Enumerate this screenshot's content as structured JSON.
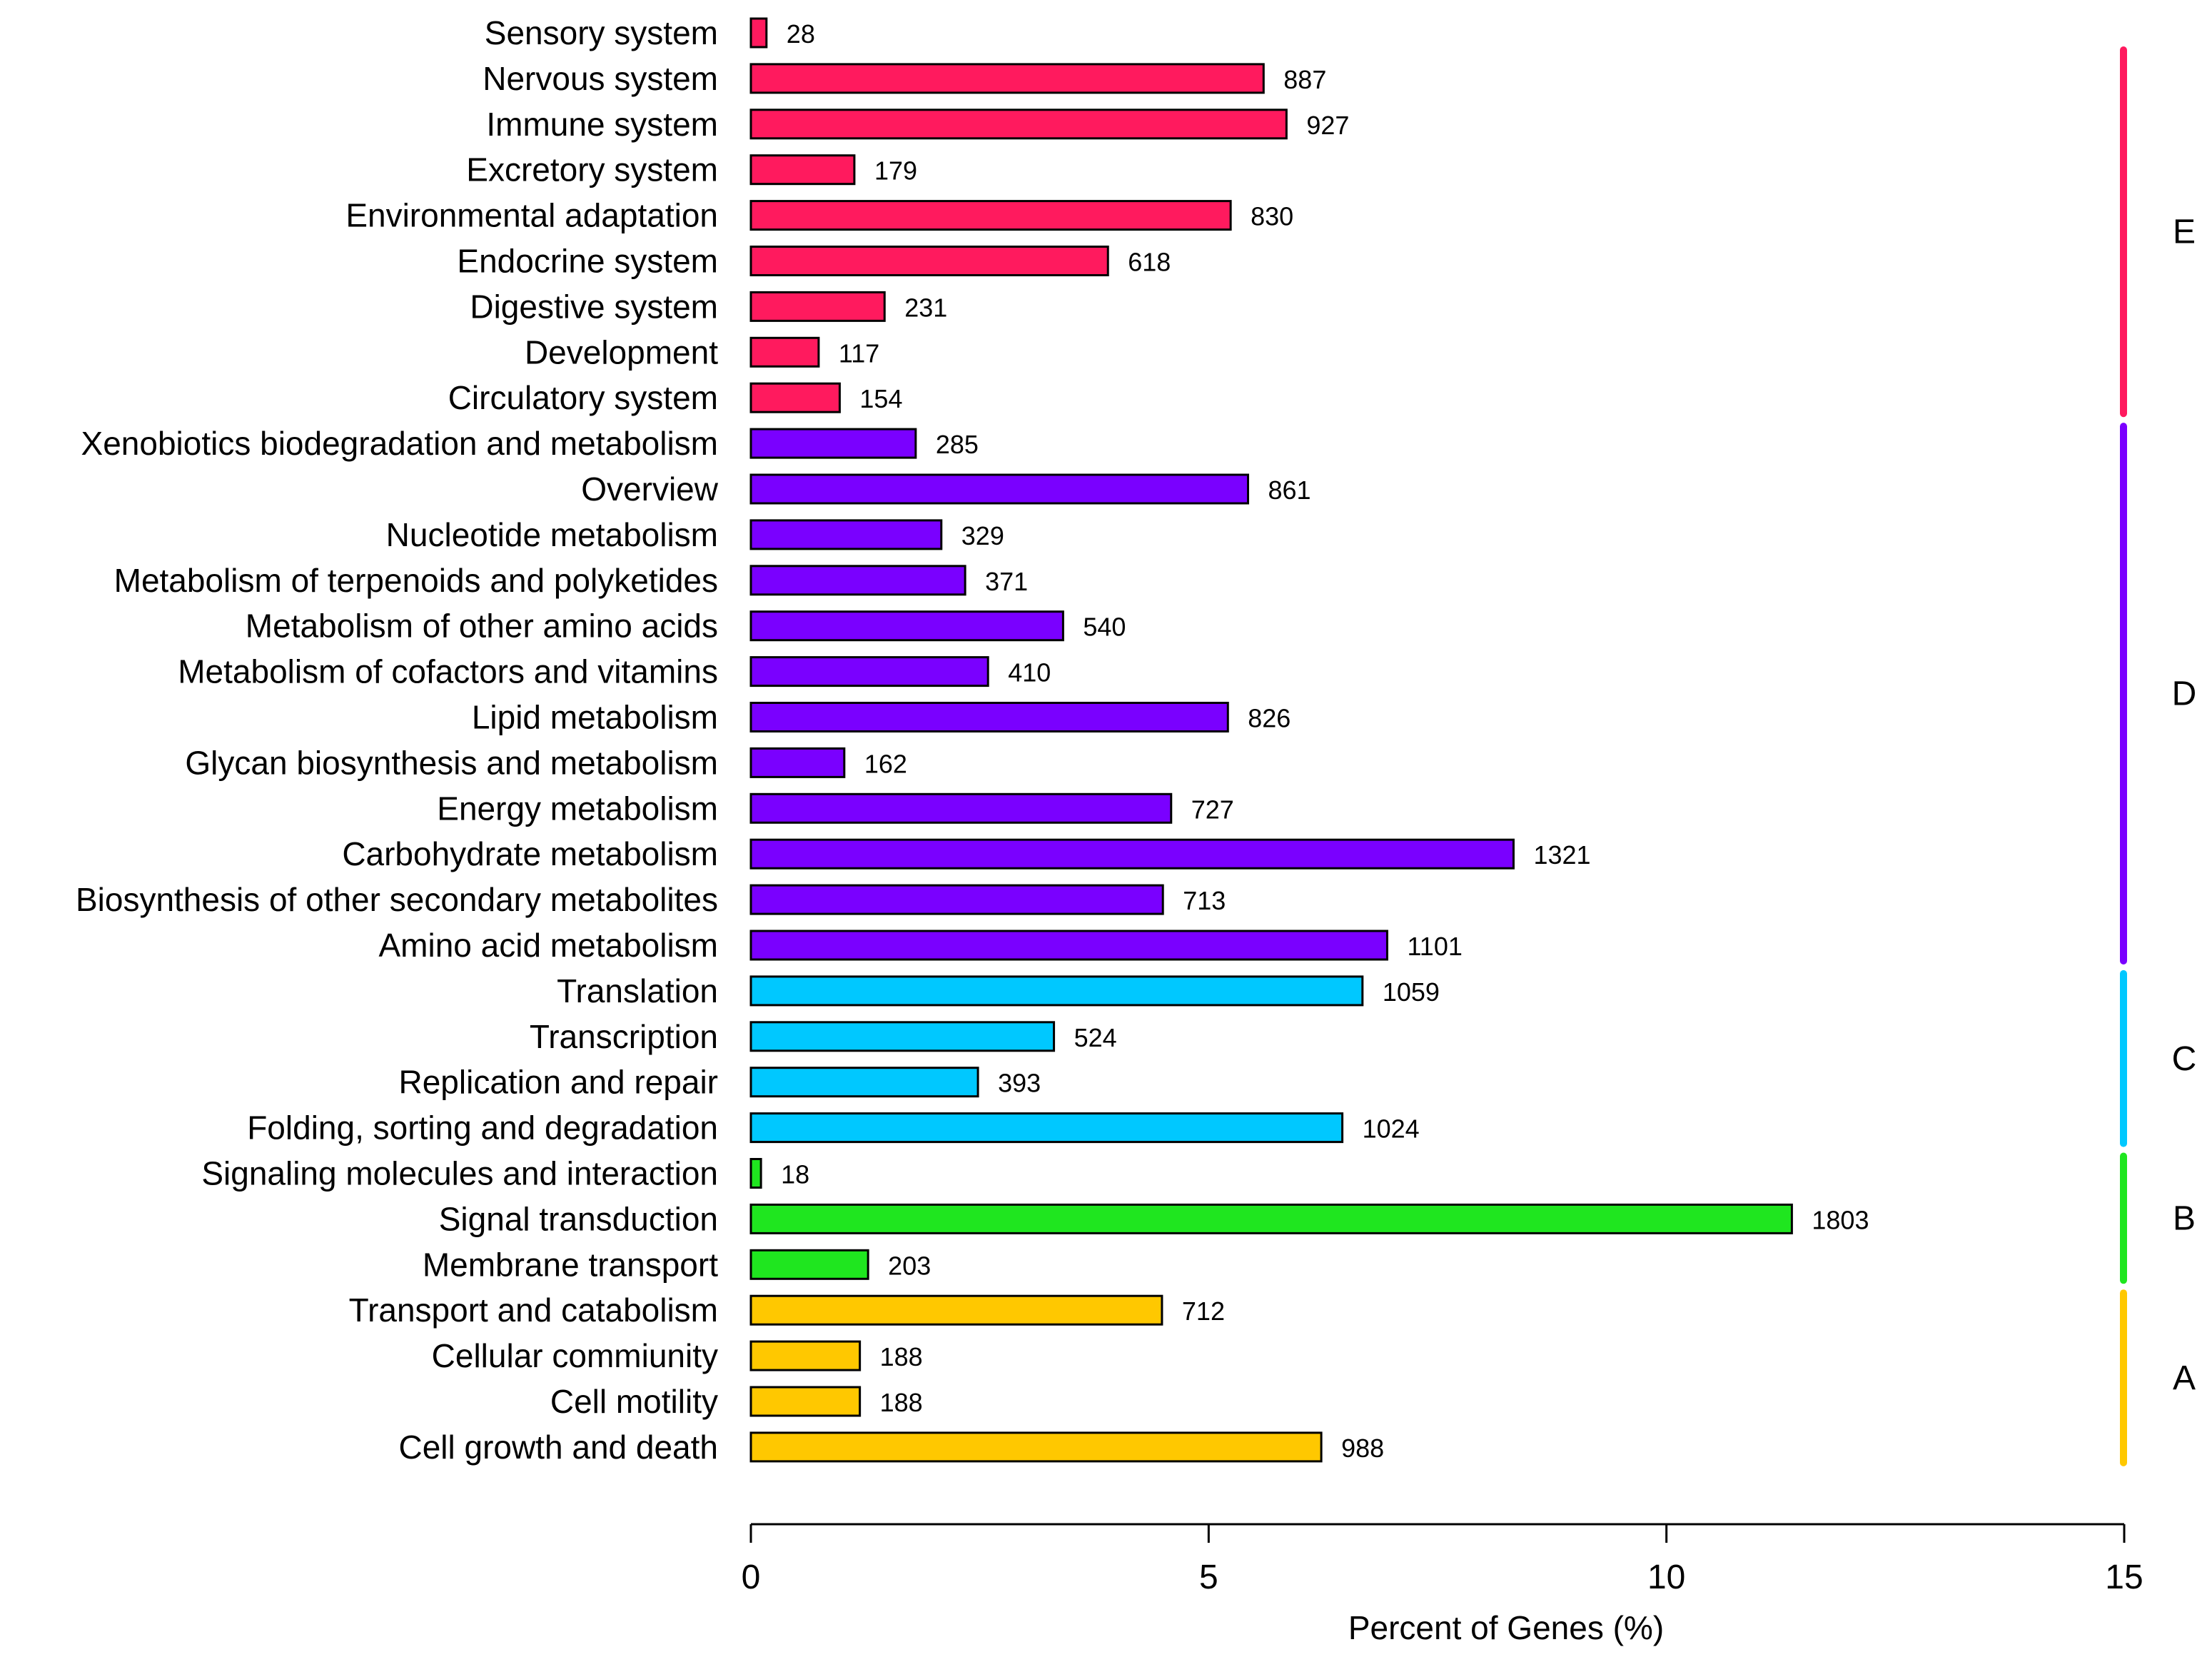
{
  "chart_data": {
    "type": "bar",
    "orientation": "horizontal",
    "xlabel": "Percent of Genes (%)",
    "xlim": [
      0,
      15
    ],
    "x_ticks": [
      "0",
      "5",
      "10",
      "15"
    ],
    "grid": false,
    "groups": [
      {
        "name": "E",
        "color": "#FF1A5E",
        "categories": [
          {
            "label": "Sensory system",
            "count": 28,
            "percent": 0.17
          },
          {
            "label": "Nervous system",
            "count": 887,
            "percent": 5.6
          },
          {
            "label": "Immune system",
            "count": 927,
            "percent": 5.85
          },
          {
            "label": "Excretory system",
            "count": 179,
            "percent": 1.13
          },
          {
            "label": "Environmental adaptation",
            "count": 830,
            "percent": 5.24
          },
          {
            "label": "Endocrine system",
            "count": 618,
            "percent": 3.9
          },
          {
            "label": "Digestive system",
            "count": 231,
            "percent": 1.46
          },
          {
            "label": "Development",
            "count": 117,
            "percent": 0.74
          },
          {
            "label": "Circulatory system",
            "count": 154,
            "percent": 0.97
          }
        ]
      },
      {
        "name": "D",
        "color": "#7A00FF",
        "categories": [
          {
            "label": "Xenobiotics biodegradation and metabolism",
            "count": 285,
            "percent": 1.8
          },
          {
            "label": "Overview",
            "count": 861,
            "percent": 5.43
          },
          {
            "label": "Nucleotide metabolism",
            "count": 329,
            "percent": 2.08
          },
          {
            "label": "Metabolism of terpenoids and polyketides",
            "count": 371,
            "percent": 2.34
          },
          {
            "label": "Metabolism of other amino acids",
            "count": 540,
            "percent": 3.41
          },
          {
            "label": "Metabolism of cofactors and vitamins",
            "count": 410,
            "percent": 2.59
          },
          {
            "label": "Lipid metabolism",
            "count": 826,
            "percent": 5.21
          },
          {
            "label": "Glycan biosynthesis and metabolism",
            "count": 162,
            "percent": 1.02
          },
          {
            "label": "Energy metabolism",
            "count": 727,
            "percent": 4.59
          },
          {
            "label": "Carbohydrate metabolism",
            "count": 1321,
            "percent": 8.33
          },
          {
            "label": "Biosynthesis of other secondary metabolites",
            "count": 713,
            "percent": 4.5
          },
          {
            "label": "Amino acid metabolism",
            "count": 1101,
            "percent": 6.95
          }
        ]
      },
      {
        "name": "C",
        "color": "#00C8FF",
        "categories": [
          {
            "label": "Translation",
            "count": 1059,
            "percent": 6.68
          },
          {
            "label": "Transcription",
            "count": 524,
            "percent": 3.31
          },
          {
            "label": "Replication and repair",
            "count": 393,
            "percent": 2.48
          },
          {
            "label": "Folding, sorting and degradation",
            "count": 1024,
            "percent": 6.46
          }
        ]
      },
      {
        "name": "B",
        "color": "#1FE61F",
        "categories": [
          {
            "label": "Signaling molecules and interaction",
            "count": 18,
            "percent": 0.11
          },
          {
            "label": "Signal transduction",
            "count": 1803,
            "percent": 11.37
          },
          {
            "label": "Membrane transport",
            "count": 203,
            "percent": 1.28
          }
        ]
      },
      {
        "name": "A",
        "color": "#FFC800",
        "categories": [
          {
            "label": "Transport and catabolism",
            "count": 712,
            "percent": 4.49
          },
          {
            "label": "Cellular commiunity",
            "count": 188,
            "percent": 1.19
          },
          {
            "label": "Cell motility",
            "count": 188,
            "percent": 1.19
          },
          {
            "label": "Cell growth and death",
            "count": 988,
            "percent": 6.23
          }
        ]
      }
    ]
  }
}
